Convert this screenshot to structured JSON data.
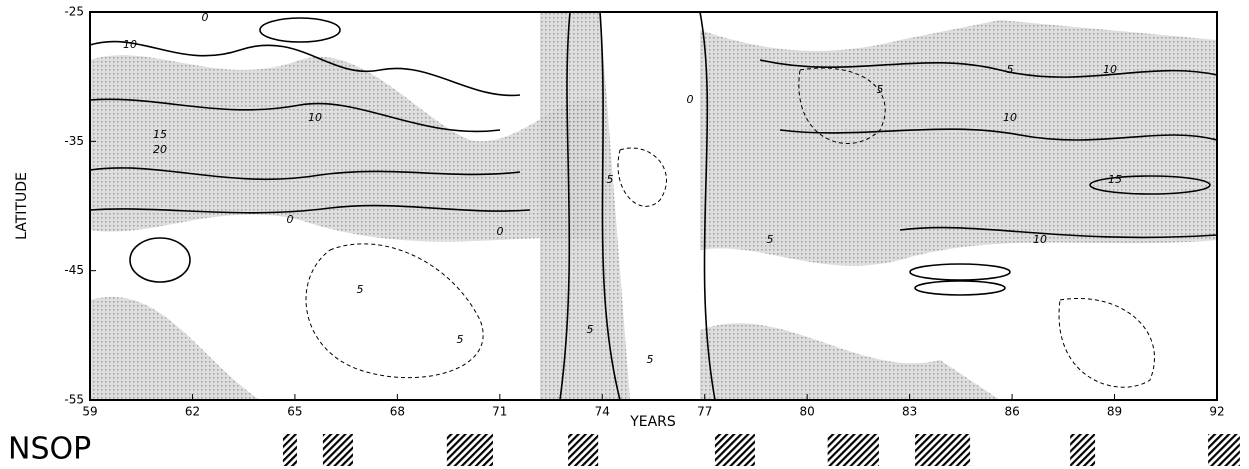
{
  "chart_data": {
    "type": "contour",
    "xlabel": "YEARS",
    "ylabel": "LATITUDE",
    "xlim": [
      59,
      92
    ],
    "xticks": [
      59,
      62,
      65,
      68,
      71,
      74,
      77,
      80,
      83,
      86,
      89,
      92
    ],
    "ylim": [
      -25,
      -55
    ],
    "yticks": [
      -25,
      -35,
      -45,
      -55
    ],
    "contour_levels": [
      0,
      5,
      10,
      15,
      20
    ],
    "shading_color": "#b8b8b8",
    "line_color": "#000000",
    "nsop": {
      "label": "NSOP",
      "periods": [
        [
          64.65,
          65.06
        ],
        [
          65.82,
          66.7
        ],
        [
          69.45,
          70.8
        ],
        [
          73.0,
          73.88
        ],
        [
          77.3,
          78.47
        ],
        [
          80.6,
          82.1
        ],
        [
          83.16,
          84.77
        ],
        [
          87.7,
          88.43
        ],
        [
          91.74,
          92.67
        ]
      ]
    }
  }
}
